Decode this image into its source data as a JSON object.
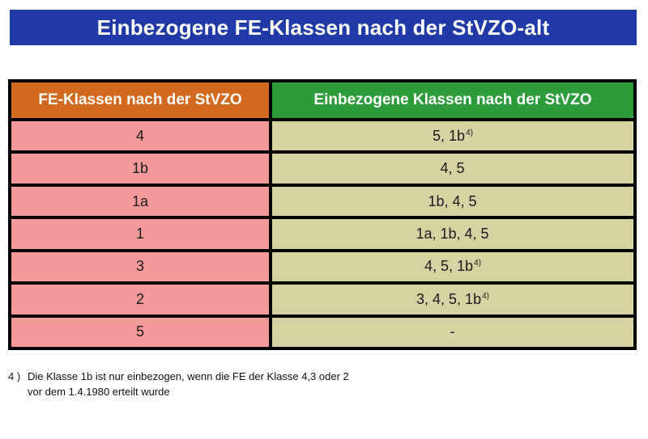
{
  "title": "Einbezogene FE-Klassen nach der StVZO-alt",
  "table": {
    "headers": [
      "FE-Klassen nach der StVZO",
      "Einbezogene Klassen nach der StVZO"
    ],
    "rows": [
      {
        "klasse": "4",
        "einbezogen": "5, 1b",
        "footnote": "4)"
      },
      {
        "klasse": "1b",
        "einbezogen": "4, 5",
        "footnote": ""
      },
      {
        "klasse": "1a",
        "einbezogen": "1b, 4, 5",
        "footnote": ""
      },
      {
        "klasse": "1",
        "einbezogen": "1a, 1b, 4, 5",
        "footnote": ""
      },
      {
        "klasse": "3",
        "einbezogen": "4, 5, 1b",
        "footnote": "4)"
      },
      {
        "klasse": "2",
        "einbezogen": "3, 4, 5, 1b",
        "footnote": "4)"
      },
      {
        "klasse": "5",
        "einbezogen": "-",
        "footnote": ""
      }
    ]
  },
  "footnote": {
    "marker": "4 )",
    "line1": "Die Klasse 1b ist nur einbezogen, wenn die FE der Klasse 4,3 oder 2",
    "line2": "vor dem 1.4.1980 erteilt wurde"
  },
  "colors": {
    "title_bg": "#1f3aa6",
    "header_left": "#d2691e",
    "header_right": "#2e9b3a",
    "cell_left": "#f59a98",
    "cell_right": "#d7d2a2"
  }
}
